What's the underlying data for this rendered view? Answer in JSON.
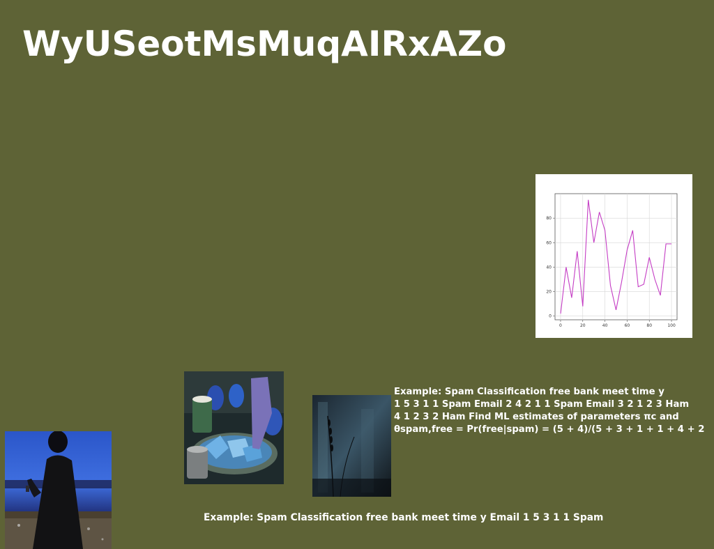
{
  "title": "WyUSeotMsMuqAIRxAZo",
  "caption_right_lines": [
    "Example: Spam Classification free bank meet time y",
    "1 5 3 1 1 Spam Email 2 4 2 1 1 Spam Email 3 2 1 2 3 Ham",
    "4 1 2 3 2 Ham Find ML estimates of parameters πc and",
    "θspam,free = Pr(free|spam) = (5 + 4)/(5 + 3 + 1 + 1 + 4 + 2"
  ],
  "caption_bottom": "Example: Spam Classification free bank meet time y Email 1 5 3 1 1 Spam",
  "chart_data": {
    "type": "line",
    "x": [
      0,
      5,
      10,
      15,
      20,
      25,
      30,
      35,
      40,
      45,
      50,
      55,
      60,
      65,
      70,
      75,
      80,
      85,
      90,
      95,
      100
    ],
    "series": [
      {
        "values": [
          2,
          40,
          15,
          53,
          8,
          95,
          60,
          85,
          70,
          25,
          5,
          28,
          54,
          70,
          24,
          26,
          48,
          30,
          17,
          59,
          59
        ],
        "color": "#c43cc4"
      }
    ],
    "xticks": [
      0,
      20,
      40,
      60,
      80,
      100
    ],
    "yticks": [
      0,
      20,
      40,
      60,
      80
    ],
    "xlim": [
      -5,
      105
    ],
    "ylim": [
      -3,
      100
    ],
    "grid": true
  },
  "images": [
    {
      "name": "person-with-phone-photo"
    },
    {
      "name": "blue-food-platter-photo"
    },
    {
      "name": "dark-grass-photo"
    }
  ]
}
